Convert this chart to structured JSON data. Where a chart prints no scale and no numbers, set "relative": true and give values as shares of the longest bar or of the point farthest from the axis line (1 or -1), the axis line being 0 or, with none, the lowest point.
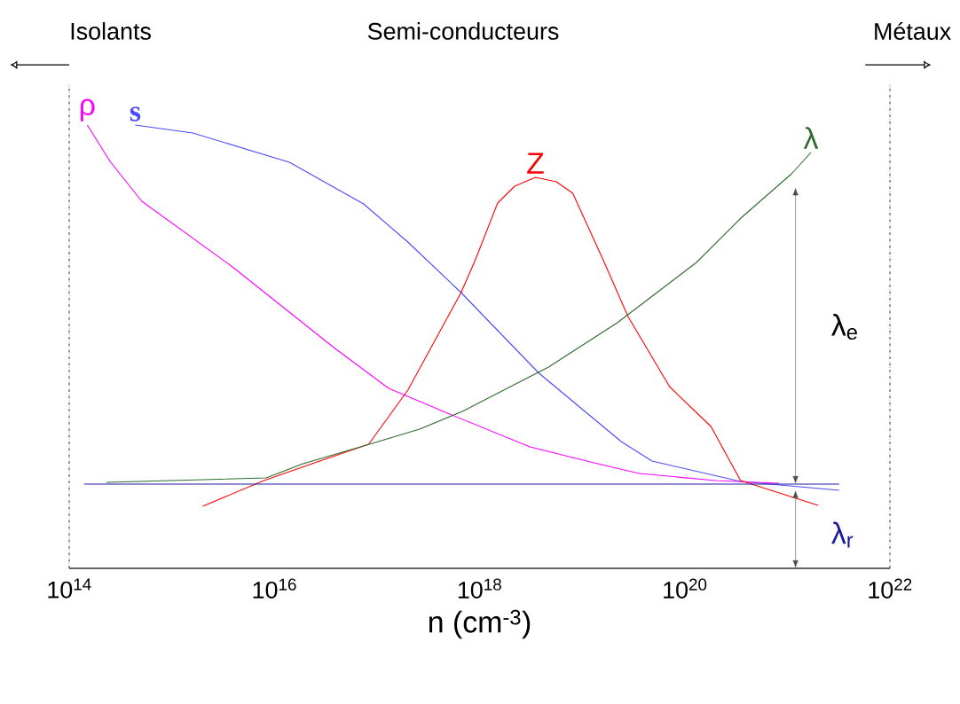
{
  "chart_data": {
    "type": "line",
    "relative": true,
    "log": "x",
    "xlabel": "n (cm$^{-3}$)",
    "xlim": [
      100000000000000.0,
      1e+22
    ],
    "xticks": [
      {
        "value": 100000000000000.0,
        "label": "10$^{14}$"
      },
      {
        "value": 1e+16,
        "label": "10$^{16}$"
      },
      {
        "value": 1e+18,
        "label": "10$^{18}$"
      },
      {
        "value": 1e+20,
        "label": "10$^{20}$"
      },
      {
        "value": 1e+22,
        "label": "10$^{22}$"
      }
    ],
    "grid": false,
    "marker": "none",
    "series": [
      {
        "name": "s",
        "color": "#4a4aff",
        "x": [
          440000000000000.0,
          1600000000000000.0,
          1.4e+16,
          7.4e+16,
          2e+17,
          6.6e+17,
          3.8e+18,
          2.4e+19,
          4.8e+19,
          3.5e+20,
          3.2e+21
        ],
        "values": [
          1.0,
          0.982,
          0.916,
          0.822,
          0.736,
          0.622,
          0.44,
          0.286,
          0.242,
          0.196,
          0.176
        ]
      },
      {
        "name": "ρ",
        "color": "#ff00ff",
        "x": [
          150000000000000.0,
          250000000000000.0,
          510000000000000.0,
          3800000000000000.0,
          3.9e+16,
          1.3e+17,
          5.1e+17,
          3.1e+18,
          1.2e+19,
          3.6e+19,
          2e+20,
          8.3e+20
        ],
        "values": [
          1.0,
          0.918,
          0.828,
          0.682,
          0.496,
          0.406,
          0.348,
          0.274,
          0.24,
          0.214,
          0.198,
          0.192
        ]
      },
      {
        "name": "Z",
        "color": "#ff0000",
        "x": [
          2000000000000000.0,
          7900000000000000.0,
          3.1e+16,
          8.3e+16,
          2e+17,
          6.6e+17,
          9.1e+17,
          1.5e+18,
          2.2e+18,
          3.5e+18,
          5.6e+18,
          8.1e+18,
          1.6e+19,
          2.8e+19,
          7.1e+19,
          1.8e+20,
          3.5e+20,
          2e+21
        ],
        "values": [
          0.14,
          0.198,
          0.246,
          0.28,
          0.402,
          0.622,
          0.696,
          0.824,
          0.862,
          0.882,
          0.872,
          0.846,
          0.696,
          0.568,
          0.41,
          0.32,
          0.198,
          0.142
        ]
      },
      {
        "name": "λ",
        "color": "#2e6b2e",
        "x": [
          230000000000000.0,
          8300000000000000.0,
          1.9e+16,
          7.4e+16,
          2.6e+17,
          6.8e+17,
          4.7e+18,
          2.2e+19,
          1.3e+20,
          3.6e+20,
          1.1e+21,
          1.7e+21
        ],
        "values": [
          0.194,
          0.204,
          0.236,
          0.276,
          0.314,
          0.354,
          0.454,
          0.554,
          0.69,
          0.792,
          0.89,
          0.938
        ]
      },
      {
        "color": "#1a1aa0",
        "x": [
          140000000000000.0,
          3.2e+21
        ],
        "values": [
          0.19,
          0.19
        ]
      }
    ],
    "annotations": [
      "Isolants",
      "Semi-conducteurs",
      "Métaux",
      "λ$_{e}$",
      "λ$_{r}$"
    ]
  }
}
